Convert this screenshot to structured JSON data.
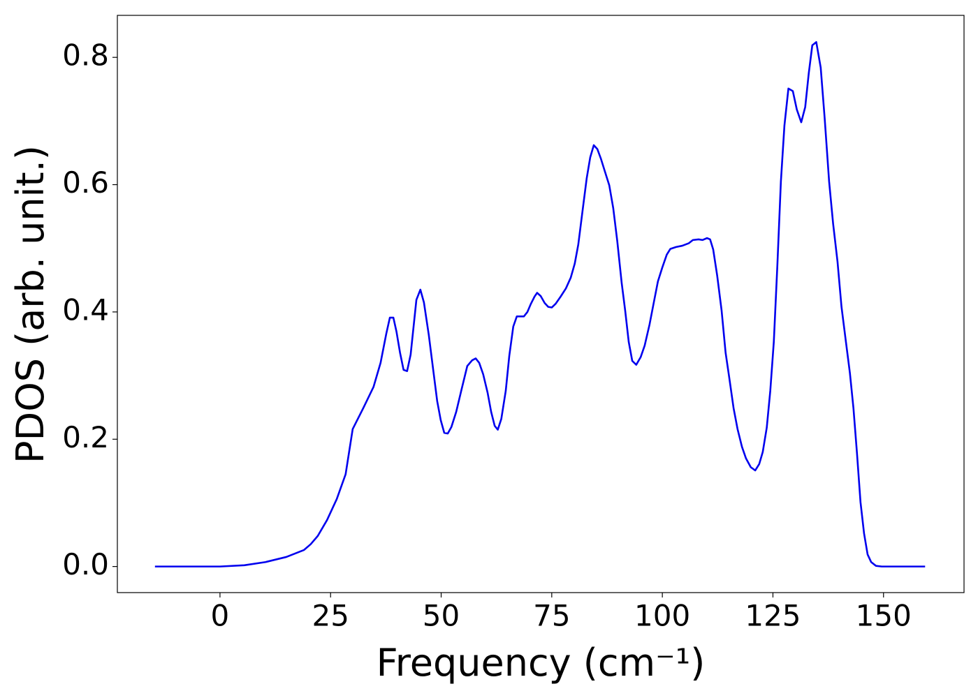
{
  "chart_data": {
    "type": "line",
    "xlabel": "Frequency (cm⁻¹)",
    "ylabel": "PDOS (arb. unit.)",
    "color": "#0000ee",
    "xlim": [
      -23.2,
      168.2
    ],
    "ylim": [
      -0.041,
      0.866
    ],
    "xticks": [
      0,
      25,
      50,
      75,
      100,
      125,
      150
    ],
    "yticks": [
      {
        "value": 0,
        "label": "0.0"
      },
      0.2,
      0.4,
      0.6,
      0.8
    ],
    "x": [
      -14.7,
      0,
      5.5,
      10.3,
      15,
      19,
      20.5,
      22.1,
      24.2,
      26.4,
      28.4,
      30,
      32.4,
      34.7,
      36.3,
      37.6,
      38.4,
      39.2,
      39.9,
      40.7,
      41.5,
      42.3,
      43.1,
      44.4,
      45.3,
      46.1,
      47.2,
      48.2,
      49.1,
      49.9,
      50.7,
      51.5,
      52.3,
      53.4,
      54.6,
      55.9,
      57,
      57.8,
      58.6,
      59.5,
      60.5,
      61.3,
      62.1,
      62.8,
      63.6,
      64.6,
      65.4,
      66.3,
      67.1,
      68.7,
      69.5,
      70.3,
      71.1,
      71.7,
      72.5,
      73.4,
      74.2,
      75,
      75.9,
      77,
      78.2,
      79.3,
      80.2,
      81,
      82,
      82.9,
      83.7,
      84.5,
      85.3,
      86.1,
      87,
      88,
      88.9,
      89.8,
      90.8,
      91.6,
      92.4,
      93.2,
      94.1,
      95.1,
      96,
      97.1,
      98.1,
      99,
      100,
      101,
      101.8,
      103.1,
      104.5,
      106,
      106.9,
      108.2,
      109.1,
      110.1,
      110.8,
      111.5,
      112.4,
      113.4,
      114.3,
      115.1,
      116.1,
      117,
      118,
      118.9,
      120,
      121,
      121.9,
      122.7,
      123.6,
      124.4,
      125.2,
      126,
      126.8,
      127.6,
      128.5,
      129.5,
      130.4,
      131.4,
      132.3,
      133.1,
      133.9,
      134.8,
      135.8,
      136.7,
      137.7,
      138.6,
      139.6,
      140.5,
      141.5,
      142.4,
      143.2,
      144,
      144.8,
      145.6,
      146.4,
      147.2,
      148.3,
      149.6,
      159.4
    ],
    "values": [
      0,
      0,
      0.002,
      0.007,
      0.015,
      0.026,
      0.035,
      0.048,
      0.073,
      0.106,
      0.145,
      0.216,
      0.249,
      0.282,
      0.32,
      0.366,
      0.391,
      0.391,
      0.369,
      0.336,
      0.309,
      0.307,
      0.333,
      0.419,
      0.435,
      0.415,
      0.364,
      0.309,
      0.26,
      0.23,
      0.21,
      0.209,
      0.219,
      0.243,
      0.278,
      0.315,
      0.324,
      0.327,
      0.32,
      0.302,
      0.273,
      0.243,
      0.221,
      0.215,
      0.232,
      0.276,
      0.331,
      0.377,
      0.393,
      0.393,
      0.4,
      0.413,
      0.424,
      0.43,
      0.425,
      0.414,
      0.408,
      0.407,
      0.413,
      0.424,
      0.437,
      0.454,
      0.476,
      0.506,
      0.561,
      0.61,
      0.643,
      0.662,
      0.656,
      0.641,
      0.621,
      0.599,
      0.563,
      0.512,
      0.446,
      0.402,
      0.353,
      0.323,
      0.317,
      0.329,
      0.347,
      0.38,
      0.416,
      0.448,
      0.47,
      0.49,
      0.499,
      0.502,
      0.504,
      0.508,
      0.513,
      0.514,
      0.513,
      0.516,
      0.514,
      0.498,
      0.457,
      0.402,
      0.336,
      0.298,
      0.249,
      0.216,
      0.188,
      0.17,
      0.156,
      0.151,
      0.161,
      0.18,
      0.218,
      0.276,
      0.353,
      0.473,
      0.605,
      0.693,
      0.751,
      0.747,
      0.718,
      0.698,
      0.722,
      0.775,
      0.819,
      0.824,
      0.784,
      0.704,
      0.605,
      0.539,
      0.479,
      0.408,
      0.353,
      0.304,
      0.249,
      0.178,
      0.101,
      0.052,
      0.019,
      0.007,
      0.001,
      0,
      0
    ]
  }
}
